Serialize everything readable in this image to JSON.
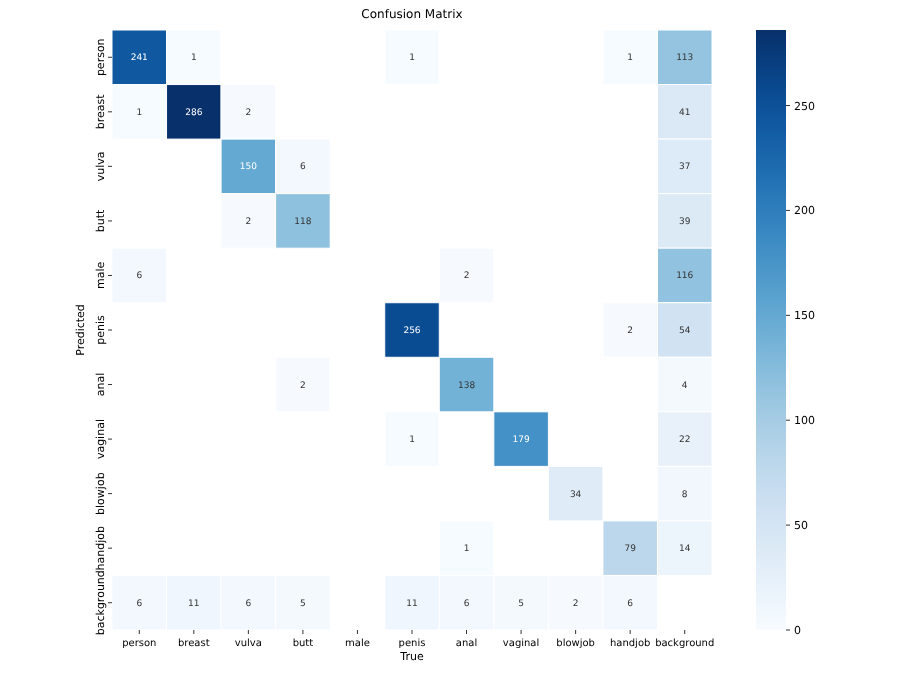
{
  "chart_data": {
    "type": "heatmap",
    "title": "Confusion Matrix",
    "xlabel": "True",
    "ylabel": "Predicted",
    "categories": [
      "person",
      "breast",
      "vulva",
      "butt",
      "male",
      "penis",
      "anal",
      "vaginal",
      "blowjob",
      "handjob",
      "background"
    ],
    "y_categories": [
      "person",
      "breast",
      "vulva",
      "butt",
      "male",
      "penis",
      "anal",
      "vaginal",
      "blowjob",
      "handjob",
      "background"
    ],
    "cells": [
      [
        241,
        1,
        null,
        null,
        null,
        1,
        null,
        null,
        null,
        1,
        113
      ],
      [
        1,
        286,
        2,
        null,
        null,
        null,
        null,
        null,
        null,
        null,
        41
      ],
      [
        null,
        null,
        150,
        6,
        null,
        null,
        null,
        null,
        null,
        null,
        37
      ],
      [
        null,
        null,
        2,
        118,
        null,
        null,
        null,
        null,
        null,
        null,
        39
      ],
      [
        6,
        null,
        null,
        null,
        null,
        null,
        2,
        null,
        null,
        null,
        116
      ],
      [
        null,
        null,
        null,
        null,
        null,
        256,
        null,
        null,
        null,
        2,
        54
      ],
      [
        null,
        null,
        null,
        2,
        null,
        null,
        138,
        null,
        null,
        null,
        4
      ],
      [
        null,
        null,
        null,
        null,
        null,
        1,
        null,
        179,
        null,
        null,
        22
      ],
      [
        null,
        null,
        null,
        null,
        null,
        null,
        null,
        null,
        34,
        null,
        8
      ],
      [
        null,
        null,
        null,
        null,
        null,
        null,
        1,
        null,
        null,
        79,
        14
      ],
      [
        6,
        11,
        6,
        5,
        null,
        11,
        6,
        5,
        2,
        6,
        null
      ]
    ],
    "data_labels": true,
    "clim": [
      0,
      286
    ],
    "cticks": [
      0,
      50,
      100,
      150,
      200,
      250
    ]
  }
}
